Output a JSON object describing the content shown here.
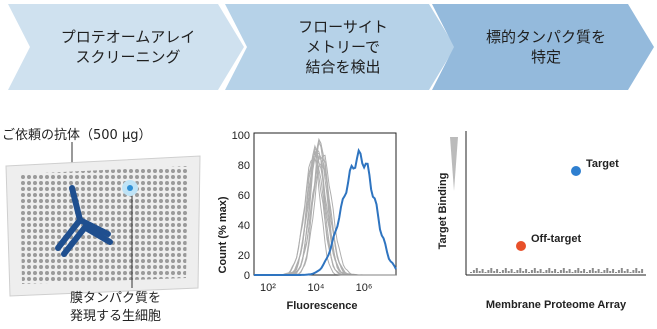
{
  "steps": [
    {
      "label": "プロテオームアレイ\nスクリーニング",
      "color": "#cfe1ef"
    },
    {
      "label": "フローサイト\nメトリーで\n結合を検出",
      "color": "#a9c9e2"
    },
    {
      "label": "標的タンパク質を\n特定",
      "color": "#7fa9cf"
    }
  ],
  "left_panel": {
    "antibody_label": "ご依頼の抗体（500 µg）",
    "cell_label": "膜タンパク質を\n発現する生細胞"
  },
  "flow_chart": {
    "ylabel": "Count (% max)",
    "xlabel": "Fluorescence",
    "yticks": [
      "0",
      "20",
      "40",
      "60",
      "80",
      "100"
    ],
    "xticks": [
      "10²",
      "10⁴",
      "10⁶"
    ],
    "negative_color": "#9a9a9a",
    "positive_color": "#2e74c0"
  },
  "array_chart": {
    "ylabel": "Target Binding",
    "xlabel": "Membrane Proteome Array",
    "target_label": "Target",
    "offtarget_label": "Off-target",
    "target_color": "#2e7fd0",
    "offtarget_color": "#e8502a"
  },
  "chart_data": [
    {
      "type": "line",
      "ylabel": "Count (% max)",
      "xlabel": "Fluorescence",
      "ylim": [
        0,
        100
      ],
      "x_ticks": [
        "10²",
        "10⁴",
        "10⁶"
      ],
      "series": [
        {
          "values": [
            0,
            2,
            18,
            85,
            60,
            20,
            4,
            0
          ]
        },
        {
          "values": [
            0,
            1,
            5,
            20,
            50,
            78,
            60,
            0
          ]
        }
      ]
    },
    {
      "type": "scatter",
      "ylabel": "Target Binding",
      "xlabel": "Membrane Proteome Array",
      "points": [
        {
          "label": "Target",
          "x": 0.85,
          "y": 0.72
        },
        {
          "label": "Off-target",
          "x": 0.45,
          "y": 0.23
        }
      ]
    }
  ]
}
